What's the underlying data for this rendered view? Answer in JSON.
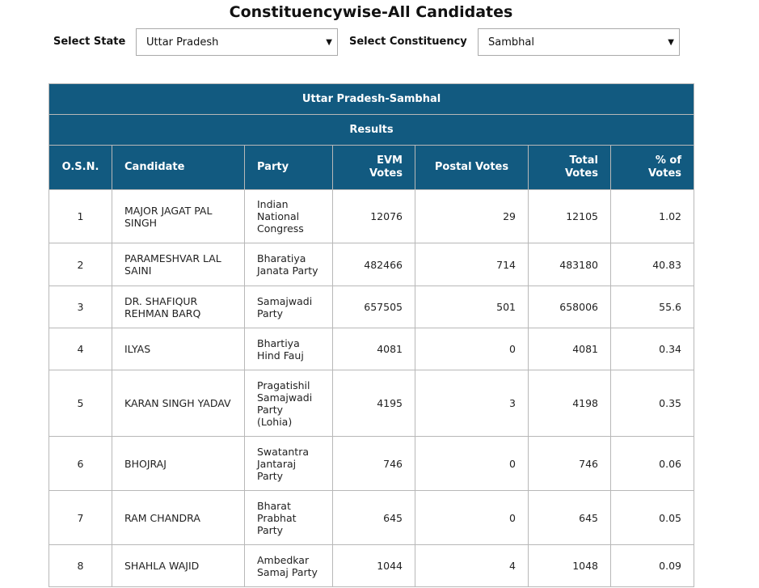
{
  "page": {
    "title": "Constituencywise-All Candidates"
  },
  "filters": {
    "state_label": "Select State",
    "state_value": "Uttar Pradesh",
    "constituency_label": "Select Constituency",
    "constituency_value": "Sambhal"
  },
  "table": {
    "heading": "Uttar Pradesh-Sambhal",
    "subheading": "Results",
    "columns": [
      "O.S.N.",
      "Candidate",
      "Party",
      "EVM Votes",
      "Postal Votes",
      "Total Votes",
      "% of Votes"
    ],
    "rows": [
      {
        "osn": "1",
        "candidate": "MAJOR JAGAT PAL SINGH",
        "party": "Indian National Congress",
        "evm": "12076",
        "postal": "29",
        "total": "12105",
        "pct": "1.02"
      },
      {
        "osn": "2",
        "candidate": "PARAMESHVAR LAL SAINI",
        "party": "Bharatiya Janata Party",
        "evm": "482466",
        "postal": "714",
        "total": "483180",
        "pct": "40.83"
      },
      {
        "osn": "3",
        "candidate": "DR. SHAFIQUR REHMAN BARQ",
        "party": "Samajwadi Party",
        "evm": "657505",
        "postal": "501",
        "total": "658006",
        "pct": "55.6"
      },
      {
        "osn": "4",
        "candidate": "ILYAS",
        "party": "Bhartiya Hind Fauj",
        "evm": "4081",
        "postal": "0",
        "total": "4081",
        "pct": "0.34"
      },
      {
        "osn": "5",
        "candidate": "KARAN SINGH YADAV",
        "party": "Pragatishil Samajwadi Party (Lohia)",
        "evm": "4195",
        "postal": "3",
        "total": "4198",
        "pct": "0.35"
      },
      {
        "osn": "6",
        "candidate": "BHOJRAJ",
        "party": "Swatantra Jantaraj Party",
        "evm": "746",
        "postal": "0",
        "total": "746",
        "pct": "0.06"
      },
      {
        "osn": "7",
        "candidate": "RAM CHANDRA",
        "party": "Bharat Prabhat Party",
        "evm": "645",
        "postal": "0",
        "total": "645",
        "pct": "0.05"
      },
      {
        "osn": "8",
        "candidate": "SHAHLA WAJID",
        "party": "Ambedkar Samaj Party",
        "evm": "1044",
        "postal": "4",
        "total": "1048",
        "pct": "0.09"
      }
    ]
  },
  "colors": {
    "header_bg": "#125a80",
    "header_text": "#ffffff",
    "border": "#b8b8b8"
  },
  "icons": {
    "dropdown": "caret-down-icon"
  }
}
